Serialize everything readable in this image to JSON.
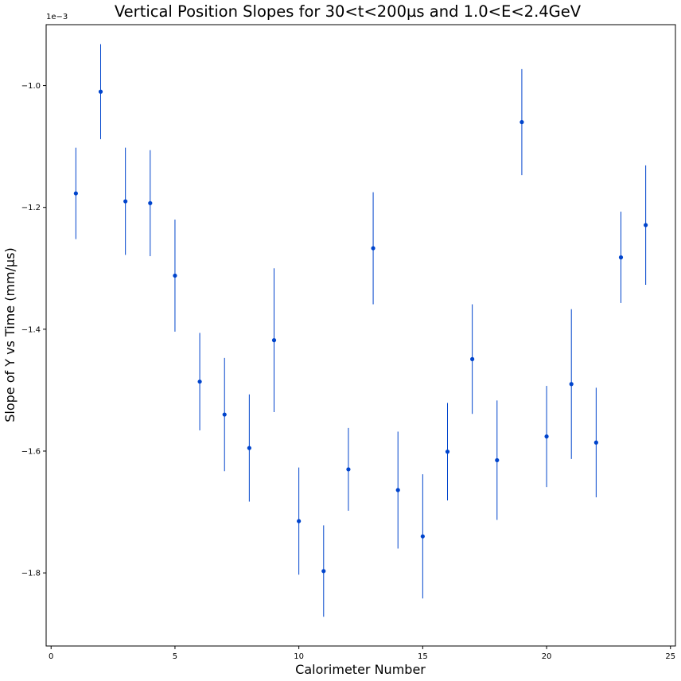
{
  "chart_data": {
    "type": "scatter",
    "title": "Vertical Position Slopes for 30<t<200µs and 1.0<E<2.4GeV",
    "xlabel": "Calorimeter Number",
    "ylabel": "Slope of Y vs Time (mm/µs)",
    "y_offset_label": "1e−3",
    "xlim": [
      -0.2,
      25.2
    ],
    "ylim": [
      -1.92,
      -0.9
    ],
    "x_ticks": [
      0,
      5,
      10,
      15,
      20,
      25
    ],
    "x_tick_labels": [
      "0",
      "5",
      "10",
      "15",
      "20",
      "25"
    ],
    "y_ticks": [
      -1.8,
      -1.6,
      -1.4,
      -1.2,
      -1.0
    ],
    "y_tick_labels": [
      "−1.8",
      "−1.6",
      "−1.4",
      "−1.2",
      "−1.0"
    ],
    "grid": false,
    "marker_color": "#0044cc",
    "errorbar_color": "#0044cc",
    "series": [
      {
        "x": [
          1,
          2,
          3,
          4,
          5,
          6,
          7,
          8,
          9,
          10,
          11,
          12,
          13,
          14,
          15,
          16,
          17,
          18,
          19,
          20,
          21,
          22,
          23,
          24
        ],
        "y": [
          -1.177,
          -1.01,
          -1.19,
          -1.193,
          -1.312,
          -1.486,
          -1.54,
          -1.595,
          -1.418,
          -1.715,
          -1.797,
          -1.63,
          -1.267,
          -1.664,
          -1.74,
          -1.601,
          -1.449,
          -1.615,
          -1.06,
          -1.576,
          -1.49,
          -1.586,
          -1.282,
          -1.229
        ],
        "yerr_low": [
          0.075,
          0.078,
          0.088,
          0.087,
          0.092,
          0.08,
          0.093,
          0.088,
          0.118,
          0.088,
          0.075,
          0.068,
          0.092,
          0.096,
          0.102,
          0.08,
          0.09,
          0.098,
          0.087,
          0.083,
          0.123,
          0.09,
          0.075,
          0.098
        ],
        "yerr_high": [
          0.075,
          0.078,
          0.088,
          0.087,
          0.092,
          0.08,
          0.093,
          0.088,
          0.118,
          0.088,
          0.075,
          0.068,
          0.092,
          0.096,
          0.102,
          0.08,
          0.09,
          0.098,
          0.087,
          0.083,
          0.123,
          0.09,
          0.075,
          0.098
        ]
      }
    ]
  }
}
